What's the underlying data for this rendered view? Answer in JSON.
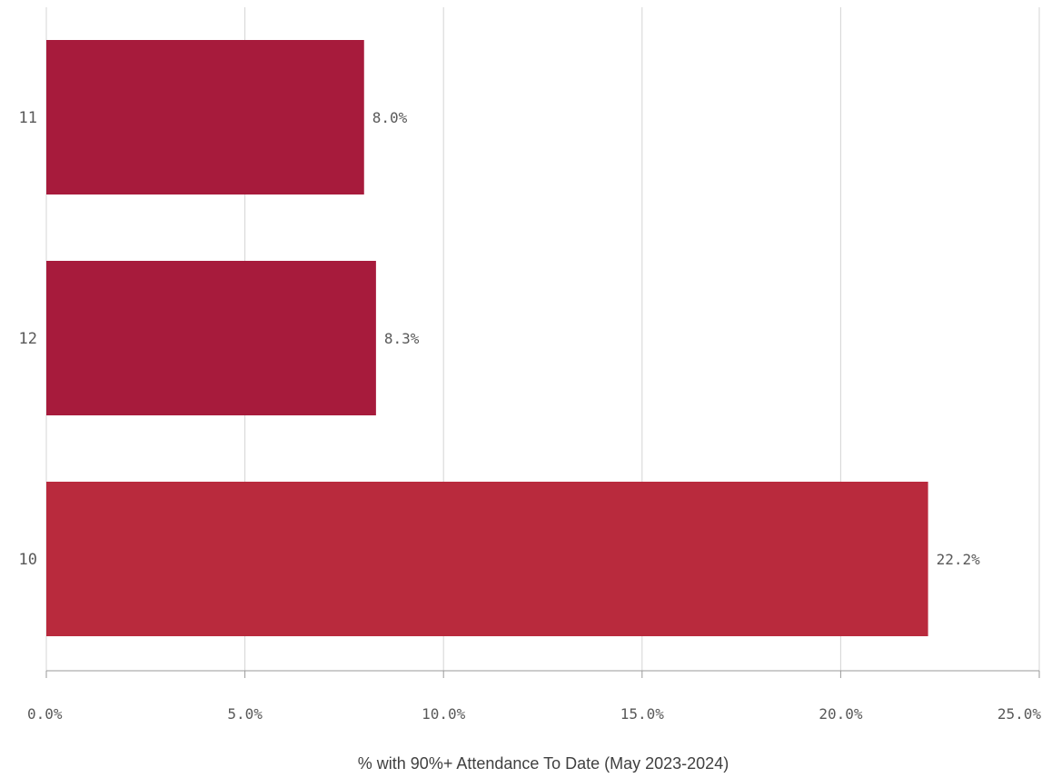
{
  "chart_data": {
    "type": "bar",
    "orientation": "horizontal",
    "categories": [
      "11",
      "12",
      "10"
    ],
    "values": [
      8.0,
      8.3,
      22.2
    ],
    "value_labels": [
      "8.0%",
      "8.3%",
      "22.2%"
    ],
    "colors": [
      "#a71b3c",
      "#a71b3c",
      "#b92a3d"
    ],
    "xlabel": "% with 90%+ Attendance To Date (May 2023-2024)",
    "xlim": [
      0,
      25
    ],
    "xticks": [
      0,
      5,
      10,
      15,
      20,
      25
    ],
    "xtick_labels": [
      "0.0%",
      "5.0%",
      "10.0%",
      "15.0%",
      "20.0%",
      "25.0%"
    ],
    "grid": "vertical",
    "legend": "none"
  }
}
